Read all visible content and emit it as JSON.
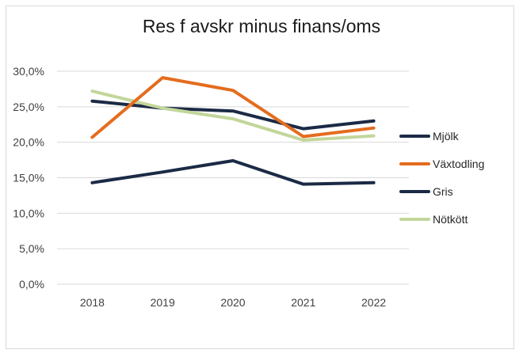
{
  "chart_data": {
    "type": "line",
    "title": "Res f avskr minus finans/oms",
    "xlabel": "",
    "ylabel": "",
    "categories": [
      "2018",
      "2019",
      "2020",
      "2021",
      "2022"
    ],
    "y_tick_labels": [
      "0,0%",
      "5,0%",
      "10,0%",
      "15,0%",
      "20,0%",
      "25,0%",
      "30,0%"
    ],
    "ylim": [
      0,
      30
    ],
    "grid": true,
    "legend_position": "right",
    "series": [
      {
        "name": "Mjölk",
        "color": "#1b2a45",
        "values": [
          25.8,
          24.8,
          24.4,
          21.9,
          23.0
        ]
      },
      {
        "name": "Växtodling",
        "color": "#e46c1e",
        "values": [
          20.7,
          29.1,
          27.3,
          20.8,
          22.0
        ]
      },
      {
        "name": "Gris",
        "color": "#1b2a45",
        "values": [
          14.3,
          15.8,
          17.4,
          14.1,
          14.3
        ]
      },
      {
        "name": "Nötkött",
        "color": "#c3d69b",
        "values": [
          27.2,
          24.8,
          23.3,
          20.3,
          20.9
        ]
      }
    ],
    "series_draw_order": [
      2,
      0,
      3,
      1
    ]
  }
}
